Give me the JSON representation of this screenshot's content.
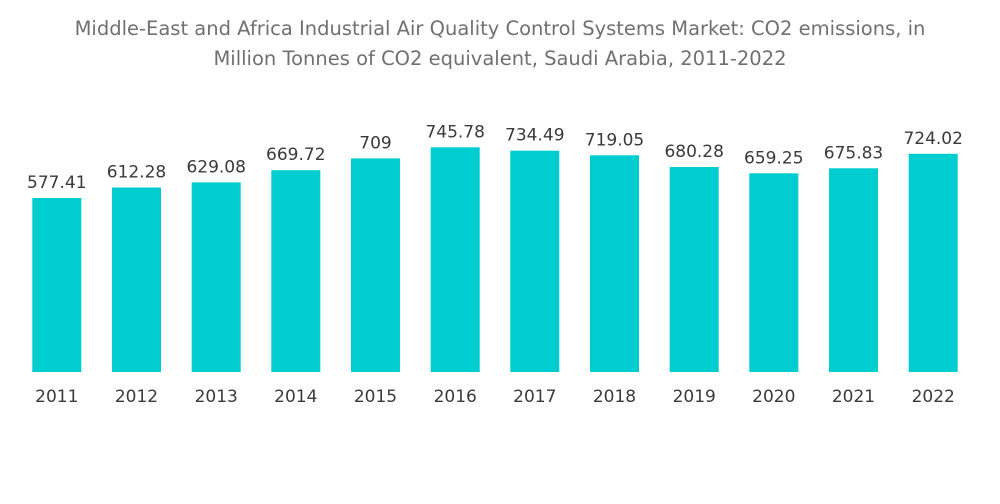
{
  "chart_data": {
    "type": "bar",
    "title_line1": "Middle-East and Africa Industrial Air Quality Control Systems Market: CO2 emissions, in",
    "title_line2": "Million Tonnes of CO2 equivalent, Saudi Arabia, 2011-2022",
    "xlabel": "",
    "ylabel": "",
    "categories": [
      "2011",
      "2012",
      "2013",
      "2014",
      "2015",
      "2016",
      "2017",
      "2018",
      "2019",
      "2020",
      "2021",
      "2022"
    ],
    "values": [
      577.41,
      612.28,
      629.08,
      669.72,
      709,
      745.78,
      734.49,
      719.05,
      680.28,
      659.25,
      675.83,
      724.02
    ],
    "value_labels": [
      "577.41",
      "612.28",
      "629.08",
      "669.72",
      "709",
      "745.78",
      "734.49",
      "719.05",
      "680.28",
      "659.25",
      "675.83",
      "724.02"
    ],
    "ylim": [
      0,
      820
    ],
    "grid": false,
    "bar_color": "#00CDCF"
  }
}
